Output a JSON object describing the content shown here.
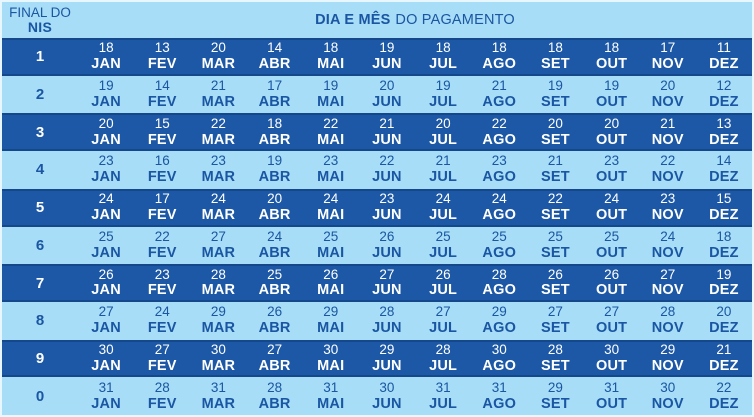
{
  "chart_data": {
    "type": "table",
    "row_header_line1": "FINAL DO",
    "row_header_line2": "NIS",
    "title_bold": "DIA E MÊS",
    "title_rest": "DO PAGAMENTO",
    "columns": [
      "JAN",
      "FEV",
      "MAR",
      "ABR",
      "MAI",
      "JUN",
      "JUL",
      "AGO",
      "SET",
      "OUT",
      "NOV",
      "DEZ"
    ],
    "rows": [
      {
        "nis": "1",
        "days": [
          "18",
          "13",
          "20",
          "14",
          "18",
          "19",
          "18",
          "18",
          "18",
          "18",
          "17",
          "11"
        ]
      },
      {
        "nis": "2",
        "days": [
          "19",
          "14",
          "21",
          "17",
          "19",
          "20",
          "19",
          "21",
          "19",
          "19",
          "20",
          "12"
        ]
      },
      {
        "nis": "3",
        "days": [
          "20",
          "15",
          "22",
          "18",
          "22",
          "21",
          "20",
          "22",
          "20",
          "20",
          "21",
          "13"
        ]
      },
      {
        "nis": "4",
        "days": [
          "23",
          "16",
          "23",
          "19",
          "23",
          "22",
          "21",
          "23",
          "21",
          "23",
          "22",
          "14"
        ]
      },
      {
        "nis": "5",
        "days": [
          "24",
          "17",
          "24",
          "20",
          "24",
          "23",
          "24",
          "24",
          "22",
          "24",
          "23",
          "15"
        ]
      },
      {
        "nis": "6",
        "days": [
          "25",
          "22",
          "27",
          "24",
          "25",
          "26",
          "25",
          "25",
          "25",
          "25",
          "24",
          "18"
        ]
      },
      {
        "nis": "7",
        "days": [
          "26",
          "23",
          "28",
          "25",
          "26",
          "27",
          "26",
          "28",
          "26",
          "26",
          "27",
          "19"
        ]
      },
      {
        "nis": "8",
        "days": [
          "27",
          "24",
          "29",
          "26",
          "29",
          "28",
          "27",
          "29",
          "27",
          "27",
          "28",
          "20"
        ]
      },
      {
        "nis": "9",
        "days": [
          "30",
          "27",
          "30",
          "27",
          "30",
          "29",
          "28",
          "30",
          "28",
          "30",
          "29",
          "21"
        ]
      },
      {
        "nis": "0",
        "days": [
          "31",
          "28",
          "31",
          "28",
          "31",
          "30",
          "31",
          "31",
          "29",
          "31",
          "30",
          "22"
        ]
      }
    ]
  },
  "colors": {
    "dark_row_bg": "#1C58A5",
    "light_row_bg": "#A7DDF6",
    "header_bg": "#A7DDF6",
    "row_text_on_dark": "#FFFFFF",
    "row_text_on_light": "#1A56A3",
    "outer_border": "#E8F6FD"
  }
}
